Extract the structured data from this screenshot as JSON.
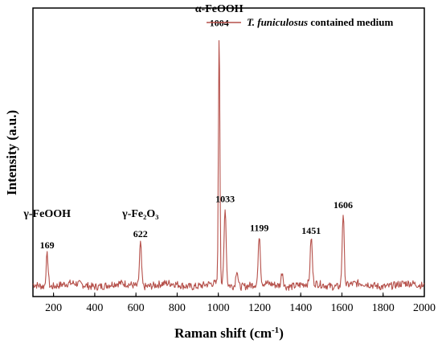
{
  "chart_data": {
    "type": "line",
    "xlabel": "Raman shift (cm",
    "xlabel_sup": "-1",
    "xlabel_suffix": ")",
    "ylabel": "Intensity (a.u.)",
    "xlim": [
      100,
      2000
    ],
    "ylim": [
      0,
      100
    ],
    "xticks": [
      200,
      400,
      600,
      800,
      1000,
      1200,
      1400,
      1600,
      1800,
      2000
    ],
    "yticks_visible": false,
    "grid": false,
    "legend": {
      "position": "top-right",
      "label_italic": "T. funiculosus",
      "label_rest": " contained medium"
    },
    "colors": {
      "series": "#b5504a",
      "axis": "#000000"
    },
    "series": [
      {
        "name": "T. funiculosus contained medium",
        "baseline": 4,
        "peaks": [
          {
            "x": 169,
            "y": 15
          },
          {
            "x": 622,
            "y": 19
          },
          {
            "x": 1004,
            "y": 92
          },
          {
            "x": 1033,
            "y": 31
          },
          {
            "x": 1090,
            "y": 10
          },
          {
            "x": 1199,
            "y": 21
          },
          {
            "x": 1310,
            "y": 9
          },
          {
            "x": 1451,
            "y": 20
          },
          {
            "x": 1606,
            "y": 29
          }
        ]
      }
    ],
    "peak_labels": [
      {
        "text": "169",
        "x": 169,
        "y": 15
      },
      {
        "text": "622",
        "x": 622,
        "y": 19
      },
      {
        "text": "1004",
        "x": 1004,
        "y": 92
      },
      {
        "text": "1033",
        "x": 1033,
        "y": 31
      },
      {
        "text": "1199",
        "x": 1199,
        "y": 21
      },
      {
        "text": "1451",
        "x": 1451,
        "y": 20
      },
      {
        "text": "1606",
        "x": 1606,
        "y": 29
      }
    ],
    "phase_labels": [
      {
        "text": "γ-FeOOH",
        "x": 169,
        "y": 29
      },
      {
        "text": "γ-Fe₂O₃",
        "x": 622,
        "y": 29
      },
      {
        "text": "α-FeOOH",
        "x": 1004,
        "y": 100
      }
    ]
  }
}
